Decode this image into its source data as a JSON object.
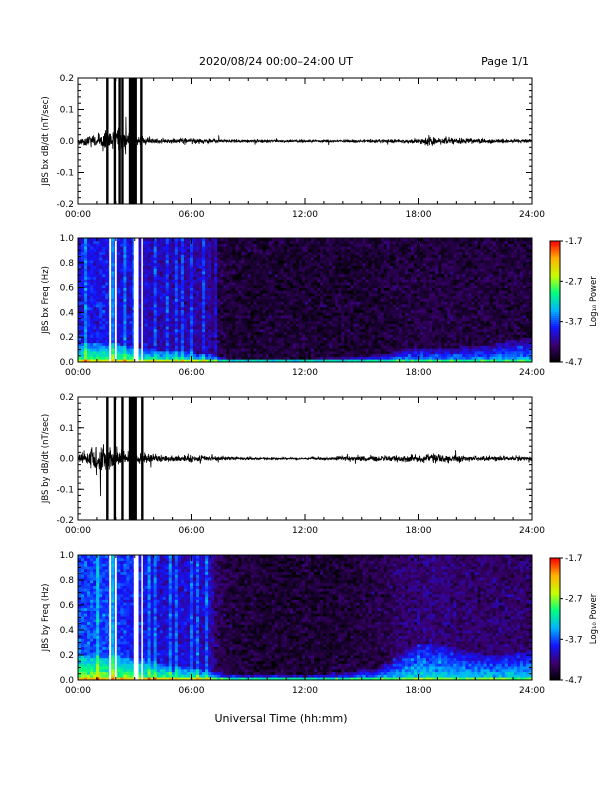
{
  "header": {
    "title": "2020/08/24  00:00–24:00 UT",
    "page": "Page 1/1"
  },
  "xaxis": {
    "label": "Universal Time (hh:mm)",
    "ticks": [
      "00:00",
      "06:00",
      "12:00",
      "18:00",
      "24:00"
    ],
    "range_hours": [
      0,
      24
    ]
  },
  "colorbar": {
    "label": "Log₁₀ Power",
    "ticks": [
      "-1.7",
      "-2.7",
      "-3.7",
      "-4.7"
    ],
    "range": [
      -4.7,
      -1.7
    ],
    "colors": [
      "#000000",
      "#3a006e",
      "#1414ff",
      "#00b4ff",
      "#00ff80",
      "#c8ff00",
      "#ffb400",
      "#ff0000"
    ]
  },
  "chart_data": [
    {
      "type": "line",
      "ylabel": "JBS bx dB/dt (nT/sec)",
      "ylim": [
        -0.2,
        0.2
      ],
      "yticks": [
        "0.2",
        "0.1",
        "0.0",
        "-0.1",
        "-0.2"
      ],
      "xlim": [
        0,
        24
      ],
      "line_color": "#000000",
      "saturated_spikes_hours": [
        1.55,
        1.95,
        2.2,
        2.35,
        2.75,
        2.85,
        2.95,
        3.05,
        3.35
      ],
      "envelope": {
        "x": [
          0,
          0.5,
          1,
          1.5,
          2,
          2.5,
          3,
          3.5,
          4,
          5,
          6,
          7,
          8,
          9,
          10,
          11,
          12,
          13,
          14,
          15,
          16,
          17,
          18,
          18.8,
          19.5,
          20,
          21,
          22,
          23,
          24
        ],
        "amplitude": [
          0.012,
          0.02,
          0.028,
          0.035,
          0.05,
          0.045,
          0.03,
          0.015,
          0.012,
          0.011,
          0.011,
          0.009,
          0.006,
          0.005,
          0.005,
          0.004,
          0.004,
          0.005,
          0.005,
          0.006,
          0.008,
          0.009,
          0.01,
          0.02,
          0.014,
          0.01,
          0.009,
          0.008,
          0.007,
          0.007
        ]
      }
    },
    {
      "type": "heatmap",
      "ylabel": "JBS bx Freq (Hz)",
      "ylim": [
        0.0,
        1.0
      ],
      "yticks": [
        "1.0",
        "0.8",
        "0.6",
        "0.4",
        "0.2",
        "0.0"
      ],
      "xlim": [
        0,
        24
      ],
      "gaps_hours": [
        [
          1.65,
          1.75
        ],
        [
          1.95,
          2.05
        ],
        [
          2.95,
          3.2
        ],
        [
          3.35,
          3.4
        ]
      ],
      "profile": {
        "x": [
          0,
          1,
          2,
          3,
          4,
          5,
          6,
          7,
          7.3,
          8,
          10,
          12,
          14,
          15,
          16,
          17,
          18,
          19,
          20,
          21,
          22,
          23,
          24
        ],
        "low_freq_cutoff_hz": [
          0.15,
          0.15,
          0.15,
          0.12,
          0.1,
          0.1,
          0.08,
          0.07,
          0.05,
          0.03,
          0.03,
          0.03,
          0.04,
          0.05,
          0.06,
          0.1,
          0.12,
          0.12,
          0.12,
          0.13,
          0.15,
          0.18,
          0.2
        ],
        "background_log_power": [
          -3.9,
          -3.9,
          -3.9,
          -4.0,
          -4.05,
          -4.1,
          -4.1,
          -4.15,
          -4.4,
          -4.5,
          -4.5,
          -4.5,
          -4.5,
          -4.5,
          -4.5,
          -4.45,
          -4.45,
          -4.45,
          -4.45,
          -4.45,
          -4.45,
          -4.45,
          -4.45
        ]
      }
    },
    {
      "type": "line",
      "ylabel": "JBS by dB/dt (nT/sec)",
      "ylim": [
        -0.2,
        0.2
      ],
      "yticks": [
        "0.2",
        "0.1",
        "0.0",
        "-0.1",
        "-0.2"
      ],
      "xlim": [
        0,
        24
      ],
      "line_color": "#000000",
      "saturated_spikes_hours": [
        1.55,
        1.95,
        2.35,
        2.75,
        2.85,
        2.95,
        3.05,
        3.4
      ],
      "envelope": {
        "x": [
          0,
          0.5,
          1,
          1.5,
          2,
          2.5,
          3,
          3.5,
          4,
          5,
          6,
          7,
          8,
          9,
          10,
          11,
          12,
          13,
          14,
          15,
          16,
          17,
          18,
          19,
          20,
          21,
          22,
          23,
          24
        ],
        "amplitude": [
          0.015,
          0.03,
          0.05,
          0.06,
          0.04,
          0.03,
          0.025,
          0.018,
          0.015,
          0.014,
          0.013,
          0.012,
          0.006,
          0.005,
          0.005,
          0.004,
          0.004,
          0.006,
          0.009,
          0.011,
          0.013,
          0.014,
          0.015,
          0.017,
          0.014,
          0.01,
          0.009,
          0.009,
          0.008
        ]
      }
    },
    {
      "type": "heatmap",
      "ylabel": "JBS by Freq (Hz)",
      "ylim": [
        0.0,
        1.0
      ],
      "yticks": [
        "1.0",
        "0.8",
        "0.6",
        "0.4",
        "0.2",
        "0.0"
      ],
      "xlim": [
        0,
        24
      ],
      "gaps_hours": [
        [
          1.65,
          1.75
        ],
        [
          1.95,
          2.05
        ],
        [
          2.95,
          3.2
        ],
        [
          3.35,
          3.4
        ]
      ],
      "profile": {
        "x": [
          0,
          1,
          2,
          3,
          4,
          5,
          6,
          7,
          7.3,
          8,
          10,
          12,
          14,
          15,
          16,
          17,
          18,
          19,
          20,
          21,
          22,
          23,
          24
        ],
        "low_freq_cutoff_hz": [
          0.2,
          0.2,
          0.2,
          0.18,
          0.15,
          0.12,
          0.1,
          0.08,
          0.06,
          0.05,
          0.05,
          0.05,
          0.06,
          0.08,
          0.1,
          0.2,
          0.3,
          0.28,
          0.25,
          0.22,
          0.2,
          0.22,
          0.24
        ],
        "background_log_power": [
          -3.7,
          -3.7,
          -3.75,
          -3.85,
          -3.95,
          -4.0,
          -4.0,
          -4.05,
          -4.35,
          -4.45,
          -4.5,
          -4.5,
          -4.5,
          -4.45,
          -4.4,
          -4.3,
          -4.25,
          -4.25,
          -4.3,
          -4.3,
          -4.3,
          -4.3,
          -4.3
        ]
      }
    }
  ]
}
